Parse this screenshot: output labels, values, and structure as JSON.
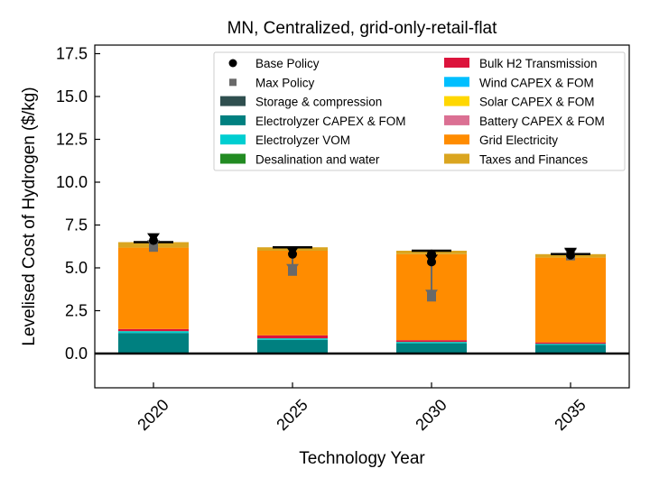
{
  "chart_data": {
    "type": "bar",
    "stacked": true,
    "title": "MN, Centralized, grid-only-retail-flat",
    "xlabel": "Technology Year",
    "ylabel": "Levelised Cost of Hydrogen ($/kg)",
    "ylim": [
      -2,
      18
    ],
    "yticks": [
      "0.0",
      "2.5",
      "5.0",
      "7.5",
      "10.0",
      "12.5",
      "15.0",
      "17.5"
    ],
    "categories": [
      "2020",
      "2025",
      "2030",
      "2035"
    ],
    "legend_position": "top-right",
    "series": [
      {
        "name": "Storage & compression",
        "color": "#2f4f4f",
        "values": [
          0.05,
          0.05,
          0.05,
          0.05
        ]
      },
      {
        "name": "Electrolyzer CAPEX & FOM",
        "color": "#008080",
        "values": [
          1.15,
          0.75,
          0.55,
          0.45
        ]
      },
      {
        "name": "Electrolyzer VOM",
        "color": "#00ced1",
        "values": [
          0.1,
          0.08,
          0.07,
          0.06
        ]
      },
      {
        "name": "Desalination and water",
        "color": "#228b22",
        "values": [
          0.01,
          0.01,
          0.01,
          0.01
        ]
      },
      {
        "name": "Bulk H2 Transmission",
        "color": "#dc143c",
        "values": [
          0.12,
          0.17,
          0.1,
          0.08
        ]
      },
      {
        "name": "Wind CAPEX & FOM",
        "color": "#00bfff",
        "values": [
          0,
          0,
          0,
          0
        ]
      },
      {
        "name": "Solar CAPEX & FOM",
        "color": "#ffd700",
        "values": [
          0,
          0,
          0,
          0
        ]
      },
      {
        "name": "Battery CAPEX & FOM",
        "color": "#db7093",
        "values": [
          0,
          0,
          0,
          0
        ]
      },
      {
        "name": "Grid Electricity",
        "color": "#ff8c00",
        "values": [
          4.75,
          4.94,
          5.02,
          4.95
        ]
      },
      {
        "name": "Taxes and Finances",
        "color": "#daa520",
        "values": [
          0.32,
          0.2,
          0.2,
          0.2
        ]
      }
    ],
    "totals": [
      6.5,
      6.2,
      6.0,
      5.8
    ],
    "base_policy": {
      "name": "Base Policy",
      "color": "#000000",
      "values": [
        6.6,
        5.8,
        5.35,
        5.75
      ]
    },
    "max_policy": {
      "name": "Max Policy",
      "color": "#696969",
      "values": [
        6.2,
        4.8,
        3.3,
        5.7
      ]
    },
    "base_policy_extra_point": [
      null,
      null,
      5.8,
      null
    ]
  }
}
